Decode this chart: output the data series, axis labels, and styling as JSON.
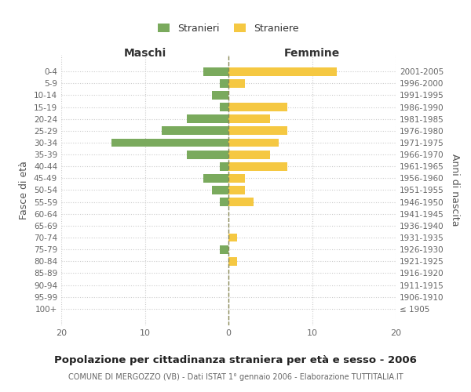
{
  "age_groups": [
    "100+",
    "95-99",
    "90-94",
    "85-89",
    "80-84",
    "75-79",
    "70-74",
    "65-69",
    "60-64",
    "55-59",
    "50-54",
    "45-49",
    "40-44",
    "35-39",
    "30-34",
    "25-29",
    "20-24",
    "15-19",
    "10-14",
    "5-9",
    "0-4"
  ],
  "birth_years": [
    "≤ 1905",
    "1906-1910",
    "1911-1915",
    "1916-1920",
    "1921-1925",
    "1926-1930",
    "1931-1935",
    "1936-1940",
    "1941-1945",
    "1946-1950",
    "1951-1955",
    "1956-1960",
    "1961-1965",
    "1966-1970",
    "1971-1975",
    "1976-1980",
    "1981-1985",
    "1986-1990",
    "1991-1995",
    "1996-2000",
    "2001-2005"
  ],
  "maschi": [
    0,
    0,
    0,
    0,
    0,
    1,
    0,
    0,
    0,
    1,
    2,
    3,
    1,
    5,
    14,
    8,
    5,
    1,
    2,
    1,
    3
  ],
  "femmine": [
    0,
    0,
    0,
    0,
    1,
    0,
    1,
    0,
    0,
    3,
    2,
    2,
    7,
    5,
    6,
    7,
    5,
    7,
    0,
    2,
    13
  ],
  "color_maschi": "#7aaa5d",
  "color_femmine": "#f5c842",
  "title": "Popolazione per cittadinanza straniera per età e sesso - 2006",
  "subtitle": "COMUNE DI MERGOZZO (VB) - Dati ISTAT 1° gennaio 2006 - Elaborazione TUTTITALIA.IT",
  "ylabel_left": "Fasce di età",
  "ylabel_right": "Anni di nascita",
  "header_left": "Maschi",
  "header_right": "Femmine",
  "xlim": 20,
  "legend_stranieri": "Stranieri",
  "legend_straniere": "Straniere",
  "grid_color": "#cccccc",
  "tick_fontsize": 7.5,
  "header_fontsize": 10,
  "title_fontsize": 9.5,
  "subtitle_fontsize": 7
}
